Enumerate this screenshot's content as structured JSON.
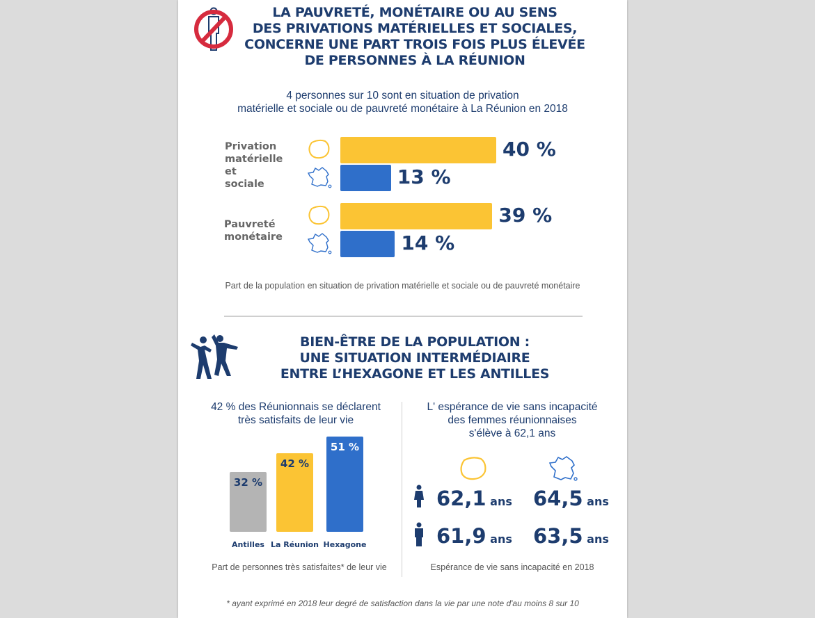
{
  "section1": {
    "title_lines": [
      "LA PAUVRETÉ, MONÉTAIRE OU AU SENS",
      "DES PRIVATIONS MATÉRIELLES ET SOCIALES,",
      "CONCERNE UNE PART TROIS FOIS PLUS ÉLEVÉE",
      "DE PERSONNES À LA RÉUNION"
    ],
    "icon": "no-poverty-person-icon",
    "subtitle_lines": [
      "4 personnes sur 10 sont en situation de privation",
      "matérielle et sociale ou de pauvreté monétaire à La Réunion en 2018"
    ],
    "caption": "Part de la population en situation de privation matérielle et sociale ou de pauvreté monétaire"
  },
  "section2": {
    "title_lines": [
      "BIEN-ÊTRE DE LA POPULATION :",
      "UNE SITUATION INTERMÉDIAIRE",
      "ENTRE L’HEXAGONE ET LES ANTILLES"
    ],
    "icon": "people-jumping-icon",
    "left": {
      "subtitle_lines": [
        "42 % des Réunionnais se déclarent",
        "très satisfaits de leur vie"
      ],
      "caption": "Part de personnes très satisfaites* de leur vie"
    },
    "right": {
      "subtitle_lines": [
        "L' espérance de vie sans incapacité",
        "des femmes réunionnaises",
        "s'élève à 62,1 ans"
      ],
      "caption": "Espérance de vie sans incapacité en 2018",
      "unit": "ans",
      "rows": [
        {
          "gender": "female",
          "reunion": "62,1",
          "hexagone": "64,5"
        },
        {
          "gender": "male",
          "reunion": "61,9",
          "hexagone": "63,5"
        }
      ]
    }
  },
  "footnote": "*  ayant exprimé en 2018 leur degré de satisfaction dans la vie par une note d'au moins 8 sur 10",
  "colors": {
    "navy": "#1d3c6e",
    "yellow": "#fbc434",
    "blue": "#2f6fca",
    "grey": "#b4b4b4",
    "red": "#d62b3e"
  },
  "chart_data": [
    {
      "type": "bar",
      "orientation": "horizontal",
      "categories": [
        [
          "Privation",
          "matérielle",
          "et",
          "sociale"
        ],
        [
          "Pauvreté",
          "monétaire"
        ]
      ],
      "series": [
        {
          "region_icon": "reunion-map-icon",
          "color": "#fbc434",
          "values": [
            40,
            39
          ],
          "labels": [
            "40 %",
            "39 %"
          ]
        },
        {
          "region_icon": "france-map-icon",
          "color": "#2f6fca",
          "values": [
            13,
            14
          ],
          "labels": [
            "13 %",
            "14 %"
          ]
        }
      ],
      "xlim": [
        0,
        40
      ]
    },
    {
      "type": "bar",
      "orientation": "vertical",
      "categories": [
        "Antilles",
        "La Réunion",
        "Hexagone"
      ],
      "values": [
        32,
        42,
        51
      ],
      "labels": [
        "32 %",
        "42 %",
        "51 %"
      ],
      "colors": [
        "#b4b4b4",
        "#fbc434",
        "#2f6fca"
      ],
      "ylim": [
        0,
        51
      ]
    }
  ]
}
